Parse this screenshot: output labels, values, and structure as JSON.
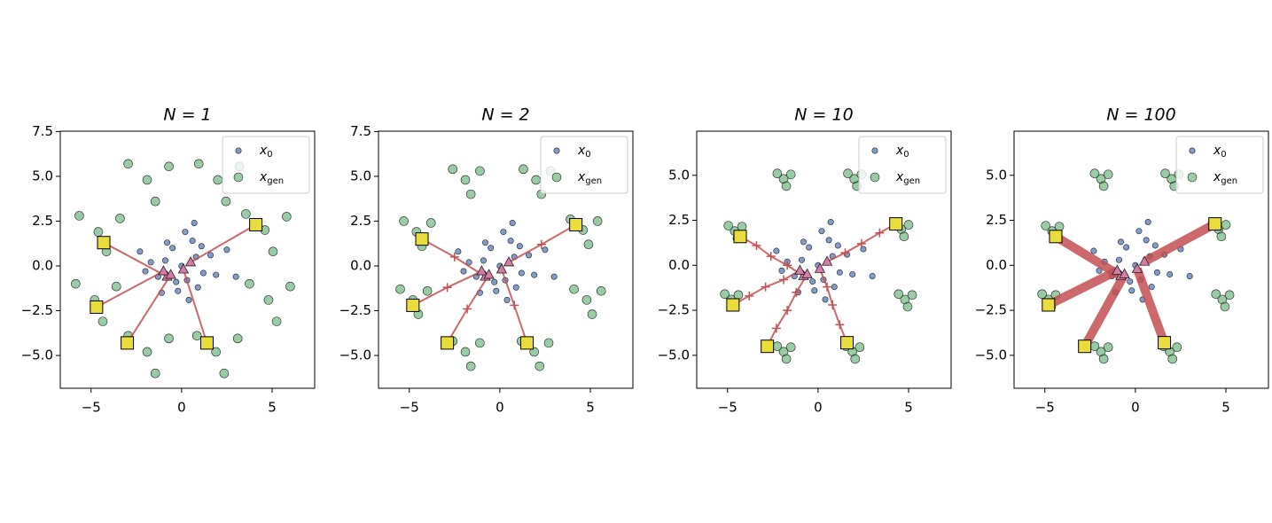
{
  "chart_data": [
    {
      "type": "scatter",
      "title": "N = 1",
      "xlim": [
        -6.7,
        7.35
      ],
      "ylim": [
        -6.83,
        7.52
      ],
      "xticks": [
        {
          "value": -5,
          "label": "−5"
        },
        0,
        5
      ],
      "yticks": [
        {
          "value": -5,
          "label": "−5.0"
        },
        {
          "value": -2.5,
          "label": "−2.5"
        },
        {
          "value": 0,
          "label": "0.0"
        },
        {
          "value": 2.5,
          "label": "2.5"
        },
        {
          "value": 5,
          "label": "5.0"
        },
        {
          "value": 7.5,
          "label": "7.5"
        }
      ],
      "legend": "upper right",
      "series": [
        {
          "name": "x0",
          "color": "#4c72b0",
          "x": [
            0,
            0.8,
            -0.9,
            0.3,
            -0.5,
            1.2,
            -1.3,
            0.6,
            -0.2,
            1.6,
            -1.7,
            0.9,
            -0.8,
            0.2,
            1.9,
            -2.0,
            0.4,
            -0.3,
            1.1,
            -1.1,
            2.5,
            -2.3,
            0.7,
            3.0
          ],
          "y": [
            0,
            0.5,
            0.3,
            -0.8,
            1.0,
            -0.4,
            -0.6,
            1.4,
            -1.4,
            0.6,
            0.2,
            -1.2,
            1.3,
            1.9,
            -0.5,
            -0.3,
            -1.9,
            -0.9,
            1.1,
            -1.5,
            0.9,
            0.8,
            2.4,
            -0.6
          ]
        },
        {
          "name": "xgen",
          "color": "#55a868",
          "x": [
            -1.9,
            -0.7,
            -2.95,
            -1.45,
            2.0,
            3.2,
            0.95,
            2.45,
            4.6,
            5.8,
            3.55,
            5.05,
            4.8,
            6.0,
            3.75,
            5.25,
            1.9,
            3.1,
            0.85,
            2.35,
            -1.9,
            -0.7,
            -2.95,
            -1.45,
            -4.8,
            -3.6,
            -5.85,
            -4.35,
            -4.6,
            -3.4,
            -5.65,
            -4.15
          ],
          "y": [
            4.8,
            5.55,
            5.7,
            3.6,
            4.8,
            5.55,
            5.7,
            3.6,
            2.0,
            2.75,
            2.9,
            0.8,
            -1.9,
            -1.15,
            -1.0,
            -3.1,
            -4.8,
            -4.05,
            -3.9,
            -6.0,
            -4.8,
            -4.05,
            -3.9,
            -6.0,
            -1.9,
            -1.15,
            -1.0,
            -3.1,
            1.9,
            2.65,
            2.8,
            0.8
          ]
        }
      ],
      "trajectories": {
        "color": "#c44e52",
        "line_width": 2,
        "marker": "none",
        "start_color": "#d67ba7",
        "end_color": "#e8dd3a",
        "paths": [
          {
            "x": [
              0.5,
              4.1
            ],
            "y": [
              0.2,
              2.3
            ]
          },
          {
            "x": [
              -0.8,
              -4.3
            ],
            "y": [
              -0.6,
              1.3
            ]
          },
          {
            "x": [
              -1.0,
              -4.7
            ],
            "y": [
              -0.3,
              -2.3
            ]
          },
          {
            "x": [
              -0.6,
              -3.0
            ],
            "y": [
              -0.5,
              -4.3
            ]
          },
          {
            "x": [
              0.1,
              1.4
            ],
            "y": [
              -0.2,
              -4.3
            ]
          }
        ]
      }
    },
    {
      "type": "scatter",
      "title": "N = 2",
      "xlim": [
        -6.7,
        7.35
      ],
      "ylim": [
        -6.83,
        7.52
      ],
      "xticks": [
        {
          "value": -5,
          "label": "−5"
        },
        0,
        5
      ],
      "yticks": [
        {
          "value": -5,
          "label": "−5.0"
        },
        {
          "value": -2.5,
          "label": "−2.5"
        },
        {
          "value": 0,
          "label": "0.0"
        },
        {
          "value": 2.5,
          "label": "2.5"
        },
        {
          "value": 5,
          "label": "5.0"
        },
        {
          "value": 7.5,
          "label": "7.5"
        }
      ],
      "legend": "upper right",
      "series": [
        {
          "name": "x0",
          "color": "#4c72b0",
          "x": [
            0,
            0.8,
            -0.9,
            0.3,
            -0.5,
            1.2,
            -1.3,
            0.6,
            -0.2,
            1.6,
            -1.7,
            0.9,
            -0.8,
            0.2,
            1.9,
            -2.0,
            0.4,
            -0.3,
            1.1,
            -1.1,
            2.5,
            -2.3,
            0.7,
            3.0
          ],
          "y": [
            0,
            0.5,
            0.3,
            -0.8,
            1.0,
            -0.4,
            -0.6,
            1.4,
            -1.4,
            0.6,
            0.2,
            -1.2,
            1.3,
            1.9,
            -0.5,
            -0.3,
            -1.9,
            -0.9,
            1.1,
            -1.5,
            0.9,
            0.8,
            2.4,
            -0.6
          ]
        },
        {
          "name": "xgen",
          "color": "#55a868",
          "x": [
            -1.9,
            -1.1,
            -2.6,
            -1.6,
            2.0,
            2.8,
            1.3,
            2.3,
            4.6,
            5.4,
            3.9,
            4.9,
            4.8,
            5.6,
            4.1,
            5.1,
            1.9,
            2.7,
            1.2,
            2.2,
            -1.9,
            -1.1,
            -2.6,
            -1.6,
            -4.8,
            -4.0,
            -5.5,
            -4.5,
            -4.6,
            -3.8,
            -5.3,
            -4.3
          ],
          "y": [
            4.8,
            5.3,
            5.4,
            4.0,
            4.8,
            5.3,
            5.4,
            4.0,
            2.0,
            2.5,
            2.6,
            1.2,
            -1.9,
            -1.4,
            -1.3,
            -2.7,
            -4.8,
            -4.3,
            -4.2,
            -5.6,
            -4.8,
            -4.3,
            -4.2,
            -5.6,
            -1.9,
            -1.4,
            -1.3,
            -2.7,
            1.9,
            2.4,
            2.5,
            1.1
          ]
        }
      ],
      "trajectories": {
        "color": "#c44e52",
        "line_width": 2,
        "marker": "+",
        "start_color": "#d67ba7",
        "end_color": "#e8dd3a",
        "paths": [
          {
            "x": [
              0.5,
              2.3,
              4.2
            ],
            "y": [
              0.2,
              1.2,
              2.3
            ]
          },
          {
            "x": [
              -0.8,
              -2.5,
              -4.3
            ],
            "y": [
              -0.6,
              0.5,
              1.5
            ]
          },
          {
            "x": [
              -1.0,
              -2.9,
              -4.8
            ],
            "y": [
              -0.3,
              -1.2,
              -2.2
            ]
          },
          {
            "x": [
              -0.6,
              -1.8,
              -2.9
            ],
            "y": [
              -0.5,
              -2.4,
              -4.3
            ]
          },
          {
            "x": [
              0.1,
              0.8,
              1.5
            ],
            "y": [
              -0.2,
              -2.2,
              -4.3
            ]
          }
        ]
      }
    },
    {
      "type": "scatter",
      "title": "N = 10",
      "xlim": [
        -6.7,
        7.35
      ],
      "ylim": [
        -6.83,
        7.45
      ],
      "xticks": [
        {
          "value": -5,
          "label": "−5"
        },
        0,
        5
      ],
      "yticks": [
        {
          "value": -5,
          "label": "−5.0"
        },
        {
          "value": -2.5,
          "label": "−2.5"
        },
        {
          "value": 0,
          "label": "0.0"
        },
        {
          "value": 2.5,
          "label": "2.5"
        },
        {
          "value": 5,
          "label": "5.0"
        }
      ],
      "legend": "upper right",
      "series": [
        {
          "name": "x0",
          "color": "#4c72b0",
          "x": [
            0,
            0.8,
            -0.9,
            0.3,
            -0.5,
            1.2,
            -1.3,
            0.6,
            -0.2,
            1.6,
            -1.7,
            0.9,
            -0.8,
            0.2,
            1.9,
            -2.0,
            0.4,
            -0.3,
            1.1,
            -1.1,
            2.5,
            -2.3,
            0.7,
            3.0
          ],
          "y": [
            0,
            0.5,
            0.3,
            -0.8,
            1.0,
            -0.4,
            -0.6,
            1.4,
            -1.4,
            0.6,
            0.2,
            -1.2,
            1.3,
            1.9,
            -0.5,
            -0.3,
            -1.9,
            -0.9,
            1.1,
            -1.5,
            0.9,
            0.8,
            2.4,
            -0.6
          ]
        },
        {
          "name": "xgen",
          "color": "#55a868",
          "x": [
            -1.9,
            -1.5,
            -2.25,
            -1.75,
            2.0,
            2.4,
            1.65,
            2.15,
            4.6,
            5.0,
            4.25,
            4.75,
            4.8,
            5.2,
            4.45,
            4.95,
            1.9,
            2.3,
            1.55,
            2.05,
            -1.9,
            -1.5,
            -2.25,
            -1.75,
            -4.8,
            -4.4,
            -5.15,
            -4.65,
            -4.6,
            -4.2,
            -4.95,
            -4.45
          ],
          "y": [
            4.8,
            5.05,
            5.1,
            4.4,
            4.8,
            5.05,
            5.1,
            4.4,
            2.0,
            2.25,
            2.3,
            1.6,
            -1.9,
            -1.65,
            -1.6,
            -2.3,
            -4.8,
            -4.55,
            -4.5,
            -5.2,
            -4.8,
            -4.55,
            -4.5,
            -5.2,
            -1.9,
            -1.65,
            -1.6,
            -2.3,
            1.9,
            2.15,
            2.2,
            1.5
          ]
        }
      ],
      "trajectories": {
        "color": "#c44e52",
        "line_width": 2,
        "marker": "+",
        "start_color": "#d67ba7",
        "end_color": "#e8dd3a",
        "paths": [
          {
            "x": [
              0.5,
              1.5,
              2.4,
              3.4,
              4.3
            ],
            "y": [
              0.2,
              0.7,
              1.2,
              1.8,
              2.3
            ]
          },
          {
            "x": [
              -0.8,
              -1.7,
              -2.6,
              -3.4,
              -4.3
            ],
            "y": [
              -0.6,
              0,
              0.5,
              1.1,
              1.6
            ]
          },
          {
            "x": [
              -1.0,
              -1.9,
              -2.9,
              -3.8,
              -4.7
            ],
            "y": [
              -0.3,
              -0.8,
              -1.2,
              -1.7,
              -2.2
            ]
          },
          {
            "x": [
              -0.6,
              -1.2,
              -1.7,
              -2.3,
              -2.8
            ],
            "y": [
              -0.5,
              -1.5,
              -2.5,
              -3.5,
              -4.5
            ]
          },
          {
            "x": [
              0.1,
              0.5,
              0.8,
              1.2,
              1.6
            ],
            "y": [
              -0.2,
              -1.2,
              -2.2,
              -3.3,
              -4.3
            ]
          }
        ]
      }
    },
    {
      "type": "scatter",
      "title": "N = 100",
      "xlim": [
        -6.7,
        7.35
      ],
      "ylim": [
        -6.83,
        7.45
      ],
      "xticks": [
        {
          "value": -5,
          "label": "−5"
        },
        0,
        5
      ],
      "yticks": [
        {
          "value": -5,
          "label": "−5.0"
        },
        {
          "value": -2.5,
          "label": "−2.5"
        },
        {
          "value": 0,
          "label": "0.0"
        },
        {
          "value": 2.5,
          "label": "2.5"
        },
        {
          "value": 5,
          "label": "5.0"
        }
      ],
      "legend": "upper right",
      "series": [
        {
          "name": "x0",
          "color": "#4c72b0",
          "x": [
            0,
            0.8,
            -0.9,
            0.3,
            -0.5,
            1.2,
            -1.3,
            0.6,
            -0.2,
            1.6,
            -1.7,
            0.9,
            -0.8,
            0.2,
            1.9,
            -2.0,
            0.4,
            -0.3,
            1.1,
            -1.1,
            2.5,
            -2.3,
            0.7,
            3.0
          ],
          "y": [
            0,
            0.5,
            0.3,
            -0.8,
            1.0,
            -0.4,
            -0.6,
            1.4,
            -1.4,
            0.6,
            0.2,
            -1.2,
            1.3,
            1.9,
            -0.5,
            -0.3,
            -1.9,
            -0.9,
            1.1,
            -1.5,
            0.9,
            0.8,
            2.4,
            -0.6
          ]
        },
        {
          "name": "xgen",
          "color": "#55a868",
          "x": [
            -1.9,
            -1.5,
            -2.25,
            -1.75,
            2.0,
            2.4,
            1.65,
            2.15,
            4.6,
            5.0,
            4.25,
            4.75,
            4.8,
            5.2,
            4.45,
            4.95,
            1.9,
            2.3,
            1.55,
            2.05,
            -1.9,
            -1.5,
            -2.25,
            -1.75,
            -4.8,
            -4.4,
            -5.15,
            -4.65,
            -4.6,
            -4.2,
            -4.95,
            -4.45
          ],
          "y": [
            4.8,
            5.05,
            5.1,
            4.4,
            4.8,
            5.05,
            5.1,
            4.4,
            2.0,
            2.25,
            2.3,
            1.6,
            -1.9,
            -1.65,
            -1.6,
            -2.3,
            -4.8,
            -4.55,
            -4.5,
            -5.2,
            -4.8,
            -4.55,
            -4.5,
            -5.2,
            -1.9,
            -1.65,
            -1.6,
            -2.3,
            1.9,
            2.15,
            2.2,
            1.5
          ]
        }
      ],
      "trajectories": {
        "color": "#c44e52",
        "line_width": 10,
        "marker": "none",
        "start_color": "#d67ba7",
        "end_color": "#e8dd3a",
        "paths": [
          {
            "x": [
              0.5,
              4.4
            ],
            "y": [
              0.2,
              2.3
            ]
          },
          {
            "x": [
              -0.8,
              -4.4
            ],
            "y": [
              -0.6,
              1.6
            ]
          },
          {
            "x": [
              -1.0,
              -4.8
            ],
            "y": [
              -0.3,
              -2.2
            ]
          },
          {
            "x": [
              -0.6,
              -2.8
            ],
            "y": [
              -0.5,
              -4.5
            ]
          },
          {
            "x": [
              0.1,
              1.6
            ],
            "y": [
              -0.2,
              -4.3
            ]
          }
        ]
      }
    }
  ]
}
